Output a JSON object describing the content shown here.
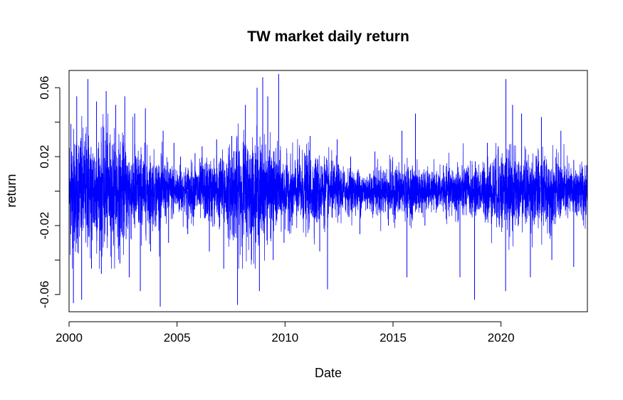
{
  "chart_data": {
    "type": "line",
    "title": "TW market daily return",
    "xlabel": "Date",
    "ylabel": "return",
    "x_range": [
      "2000-01-04",
      "2023-12-29"
    ],
    "xlim": [
      2000,
      2024
    ],
    "ylim": [
      -0.07,
      0.07
    ],
    "x_ticks": [
      "2000",
      "2005",
      "2010",
      "2015",
      "2020"
    ],
    "y_ticks": [
      "-0.06",
      "-0.02",
      "0.02",
      "0.06"
    ],
    "y_minor_ticks": [
      -0.04,
      0.0,
      0.04
    ],
    "grid": false,
    "legend": "none",
    "series": [
      {
        "color": "#0000ff",
        "x": [
          "2000-02-01",
          "2000-03-15",
          "2000-05-10",
          "2000-08-01",
          "2000-11-15",
          "2001-01-15",
          "2001-04-10",
          "2001-07-01",
          "2001-09-20",
          "2001-12-10",
          "2002-03-01",
          "2002-05-10",
          "2002-08-01",
          "2002-10-15",
          "2003-01-15",
          "2003-04-20",
          "2003-07-15",
          "2003-10-10",
          "2004-03-22",
          "2004-05-10",
          "2004-08-10",
          "2004-11-10",
          "2005-03-01",
          "2005-07-01",
          "2005-11-01",
          "2006-03-01",
          "2006-07-01",
          "2006-11-01",
          "2007-03-01",
          "2007-07-15",
          "2007-10-20",
          "2008-03-01",
          "2008-06-15",
          "2008-09-15",
          "2008-10-25",
          "2008-12-20",
          "2009-03-15",
          "2009-06-15",
          "2009-09-15",
          "2009-12-15",
          "2010-05-01",
          "2010-09-01",
          "2011-03-01",
          "2011-08-10",
          "2011-12-20",
          "2012-06-01",
          "2013-01-15",
          "2013-06-20",
          "2014-03-01",
          "2014-10-15",
          "2015-06-01",
          "2015-08-24",
          "2016-01-15",
          "2016-06-24",
          "2017-05-01",
          "2018-02-06",
          "2018-10-11",
          "2019-05-15",
          "2019-11-15",
          "2020-03-19",
          "2020-03-24",
          "2020-07-15",
          "2020-12-15",
          "2021-05-12",
          "2021-11-15",
          "2022-05-10",
          "2022-10-10",
          "2023-05-15",
          "2023-12-20"
        ],
        "values": [
          0.039,
          -0.065,
          0.055,
          -0.063,
          0.065,
          -0.045,
          0.052,
          -0.048,
          0.058,
          -0.038,
          0.05,
          -0.042,
          0.055,
          -0.05,
          0.045,
          -0.058,
          0.048,
          -0.035,
          -0.067,
          0.035,
          -0.03,
          0.028,
          0.02,
          -0.025,
          0.022,
          0.026,
          -0.035,
          0.03,
          -0.045,
          0.032,
          -0.066,
          0.05,
          -0.04,
          0.06,
          -0.058,
          0.066,
          0.055,
          -0.04,
          0.068,
          -0.03,
          -0.02,
          0.025,
          0.032,
          -0.035,
          -0.057,
          0.03,
          0.02,
          -0.025,
          0.023,
          -0.02,
          0.035,
          -0.05,
          0.045,
          -0.02,
          0.015,
          -0.05,
          -0.063,
          0.028,
          0.026,
          -0.058,
          0.065,
          0.05,
          0.045,
          -0.05,
          0.043,
          -0.04,
          0.035,
          -0.044,
          0.015
        ]
      }
    ]
  }
}
